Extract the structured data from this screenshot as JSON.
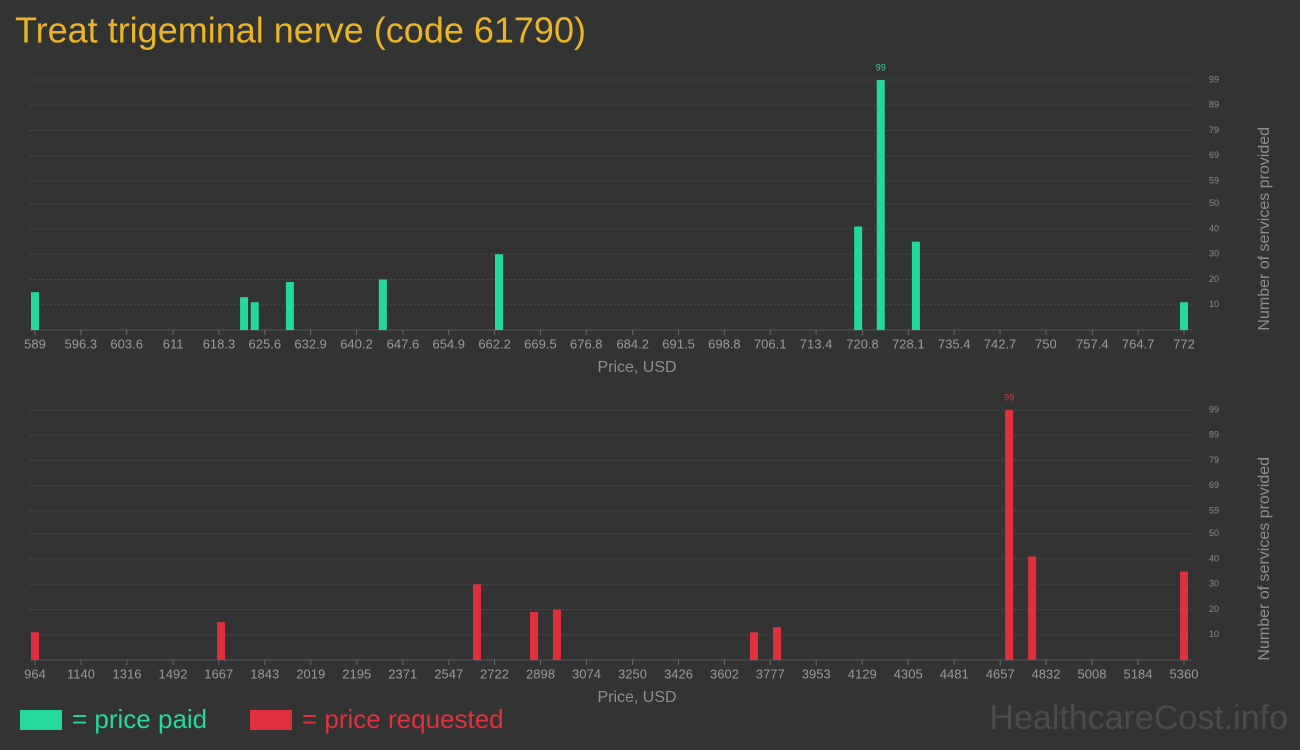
{
  "title": "Treat trigeminal nerve (code 61790)",
  "watermark": "HealthcareCost.info",
  "chart_data": [
    {
      "type": "bar",
      "x": [
        589,
        622.3,
        624,
        629.6,
        644.4,
        662.9,
        720.1,
        723.7,
        729.3,
        772
      ],
      "series": [
        {
          "name": "= price paid",
          "color": "#25d99b",
          "values": [
            15,
            13,
            11,
            19,
            20,
            30,
            41,
            99,
            35,
            11
          ],
          "value_labels": [
            null,
            null,
            null,
            null,
            null,
            null,
            null,
            99,
            null,
            null
          ]
        }
      ],
      "xlabel": "Price, USD",
      "ylabel": "Number of services provided",
      "xlim": [
        589,
        772
      ],
      "xticks": [
        589,
        596.3,
        603.6,
        611,
        618.3,
        625.6,
        632.9,
        640.2,
        647.6,
        654.9,
        662.2,
        669.5,
        676.8,
        684.2,
        691.5,
        698.8,
        706.1,
        713.4,
        720.8,
        728.1,
        735.4,
        742.7,
        750,
        757.4,
        764.7,
        772
      ],
      "ylim": [
        0,
        100
      ],
      "yticks": [
        10,
        20,
        30,
        40,
        50,
        59,
        69,
        79,
        89,
        99
      ],
      "grid": true
    },
    {
      "type": "bar",
      "x": [
        964,
        1676,
        2655,
        2873,
        2961,
        3715,
        3803,
        4691,
        4779,
        5360
      ],
      "series": [
        {
          "name": "= price requested",
          "color": "#e0303f",
          "values": [
            11,
            15,
            30,
            19,
            20,
            11,
            13,
            99,
            41,
            35
          ],
          "value_labels": [
            null,
            null,
            null,
            null,
            null,
            null,
            null,
            99,
            null,
            null
          ]
        }
      ],
      "xlabel": "Price, USD",
      "ylabel": "Number of services provided",
      "xlim": [
        964,
        5360
      ],
      "xticks": [
        964,
        1140,
        1316,
        1492,
        1667,
        1843,
        2019,
        2195,
        2371,
        2547,
        2722,
        2898,
        3074,
        3250,
        3426,
        3602,
        3777,
        3953,
        4129,
        4305,
        4481,
        4657,
        4832,
        5008,
        5184,
        5360
      ],
      "ylim": [
        0,
        100
      ],
      "yticks": [
        10,
        20,
        30,
        40,
        50,
        59,
        69,
        79,
        89,
        99
      ],
      "grid": true
    }
  ]
}
